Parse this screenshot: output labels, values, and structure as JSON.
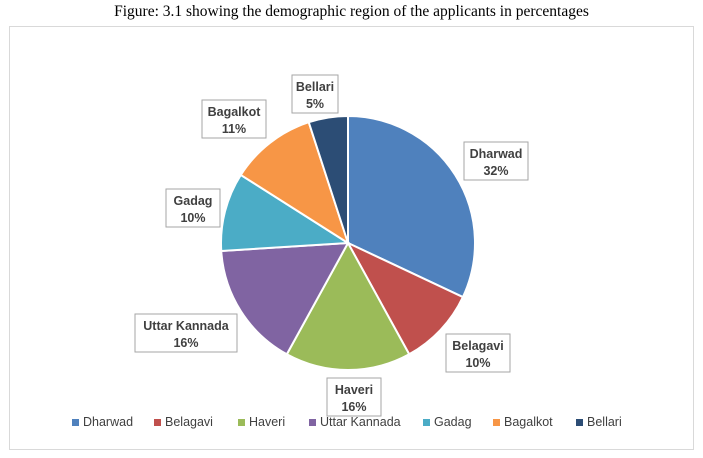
{
  "figure_caption": "Figure: 3.1 showing the demographic region of the applicants in percentages",
  "chart_data": {
    "type": "pie",
    "title": "",
    "categories": [
      "Dharwad",
      "Belagavi",
      "Haveri",
      "Uttar Kannada",
      "Gadag",
      "Bagalkot",
      "Bellari"
    ],
    "values": [
      32,
      10,
      16,
      16,
      10,
      11,
      5
    ],
    "data_labels": [
      "32%",
      "10%",
      "16%",
      "16%",
      "10%",
      "11%",
      "5%"
    ],
    "colors": [
      "#4f81bd",
      "#c0504d",
      "#9bbb59",
      "#8064a2",
      "#4bacc6",
      "#f79646",
      "#2c4d75"
    ],
    "legend_position": "bottom",
    "start_angle_deg": 0,
    "direction": "clockwise"
  }
}
